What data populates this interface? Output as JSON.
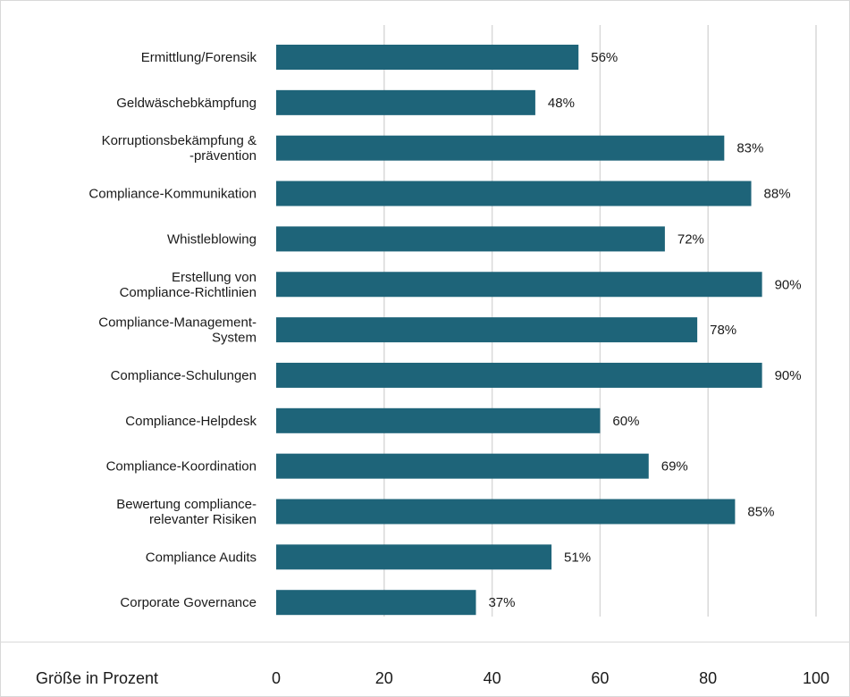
{
  "chart_data": {
    "type": "bar",
    "orientation": "horizontal",
    "categories": [
      "Ermittlung/Forensik",
      "Geldwäschebkämpfung",
      "Korruptionsbekämpfung & -prävention",
      "Compliance-Kommunikation",
      "Whistleblowing",
      "Erstellung von Compliance-Richtlinien",
      "Compliance-Management-System",
      "Compliance-Schulungen",
      "Compliance-Helpdesk",
      "Compliance-Koordination",
      "Bewertung compliance-relevanter Risiken",
      "Compliance Audits",
      "Corporate Governance"
    ],
    "category_lines": [
      [
        "Ermittlung/Forensik"
      ],
      [
        "Geldwäschebkämpfung"
      ],
      [
        "Korruptionsbekämpfung &",
        "-prävention"
      ],
      [
        "Compliance-Kommunikation"
      ],
      [
        "Whistleblowing"
      ],
      [
        "Erstellung von",
        "Compliance-Richtlinien"
      ],
      [
        "Compliance-Management-",
        "System"
      ],
      [
        "Compliance-Schulungen"
      ],
      [
        "Compliance-Helpdesk"
      ],
      [
        "Compliance-Koordination"
      ],
      [
        "Bewertung compliance-",
        "relevanter Risiken"
      ],
      [
        "Compliance Audits"
      ],
      [
        "Corporate Governance"
      ]
    ],
    "values": [
      56,
      48,
      83,
      88,
      72,
      90,
      78,
      90,
      60,
      69,
      85,
      51,
      37
    ],
    "value_labels": [
      "56%",
      "48%",
      "83%",
      "88%",
      "72%",
      "90%",
      "78%",
      "90%",
      "60%",
      "69%",
      "85%",
      "51%",
      "37%"
    ],
    "xlabel": "Größe in Prozent",
    "xticks": [
      "0",
      "20",
      "40",
      "60",
      "80",
      "100"
    ],
    "xlim": [
      0,
      100
    ],
    "grid": true,
    "bar_color": "#1e6479",
    "grid_color": "#d9d9d9"
  }
}
